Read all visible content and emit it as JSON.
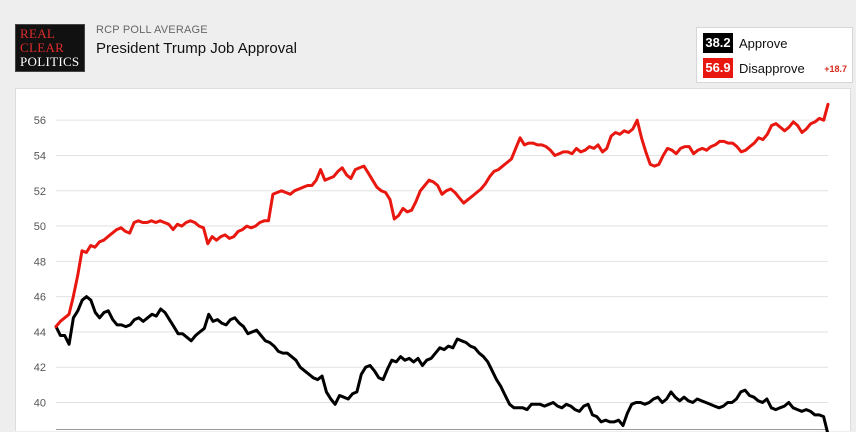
{
  "header": {
    "logo_lines": [
      "Real",
      "Clear",
      "Politics"
    ],
    "subtitle": "RCP POLL AVERAGE",
    "title": "President Trump Job Approval"
  },
  "legend": {
    "approve": {
      "value": "38.2",
      "label": "Approve",
      "color": "#000000"
    },
    "disapprove": {
      "value": "56.9",
      "label": "Disapprove",
      "color": "#e8170f"
    },
    "spread": "+18.7"
  },
  "chart_data": {
    "type": "line",
    "title": "",
    "xlabel": "",
    "ylabel": "",
    "ylim": [
      38.5,
      57.2
    ],
    "yticks": [
      40,
      42,
      44,
      46,
      48,
      50,
      52,
      54,
      56
    ],
    "ytick_labels": [
      "40",
      "42",
      "44",
      "46",
      "48",
      "50",
      "52",
      "54",
      "56"
    ],
    "grid": true,
    "legend_placement": "top-right",
    "series": [
      {
        "name": "Approve",
        "color": "#000000",
        "values": [
          44.3,
          43.8,
          43.8,
          43.3,
          44.8,
          45.2,
          45.8,
          46.0,
          45.8,
          45.1,
          44.8,
          45.1,
          45.2,
          44.7,
          44.4,
          44.4,
          44.3,
          44.4,
          44.7,
          44.8,
          44.6,
          44.8,
          45.0,
          44.9,
          45.3,
          45.1,
          44.7,
          44.3,
          43.9,
          43.9,
          43.7,
          43.5,
          43.8,
          44.0,
          44.2,
          45.0,
          44.6,
          44.7,
          44.5,
          44.4,
          44.7,
          44.8,
          44.5,
          44.3,
          43.9,
          44.0,
          44.1,
          43.8,
          43.5,
          43.4,
          43.2,
          42.9,
          42.8,
          42.8,
          42.6,
          42.4,
          42.0,
          41.8,
          41.6,
          41.4,
          41.3,
          41.5,
          40.6,
          40.2,
          39.9,
          40.4,
          40.3,
          40.2,
          40.5,
          40.6,
          41.6,
          42.0,
          42.1,
          41.8,
          41.4,
          41.3,
          41.9,
          42.4,
          42.3,
          42.6,
          42.4,
          42.5,
          42.3,
          42.5,
          42.1,
          42.4,
          42.5,
          42.8,
          43.1,
          43.0,
          43.2,
          43.1,
          43.6,
          43.5,
          43.4,
          43.2,
          43.1,
          42.8,
          42.6,
          42.3,
          41.8,
          41.3,
          40.9,
          40.4,
          39.9,
          39.7,
          39.7,
          39.7,
          39.6,
          39.9,
          39.9,
          39.9,
          39.8,
          39.9,
          40.0,
          39.8,
          39.7,
          39.9,
          39.8,
          39.6,
          39.5,
          39.8,
          39.9,
          39.3,
          39.2,
          38.9,
          39.0,
          38.9,
          38.9,
          39.0,
          38.7,
          39.4,
          39.9,
          40.0,
          40.0,
          39.9,
          40.0,
          40.2,
          40.3,
          40.0,
          40.2,
          40.6,
          40.3,
          40.1,
          40.3,
          40.1,
          40.0,
          40.2,
          40.1,
          40.0,
          39.9,
          39.8,
          39.7,
          39.8,
          40.0,
          40.0,
          40.2,
          40.6,
          40.7,
          40.4,
          40.3,
          40.1,
          40.0,
          40.2,
          39.7,
          39.6,
          39.7,
          39.8,
          40.0,
          39.7,
          39.6,
          39.5,
          39.6,
          39.5,
          39.3,
          39.3,
          39.2,
          38.2
        ]
      },
      {
        "name": "Disapprove",
        "color": "#e8170f",
        "values": [
          44.3,
          44.6,
          44.8,
          45.0,
          46.0,
          47.2,
          48.6,
          48.5,
          48.9,
          48.8,
          49.1,
          49.2,
          49.4,
          49.6,
          49.8,
          49.9,
          49.7,
          49.6,
          50.2,
          50.3,
          50.2,
          50.2,
          50.3,
          50.2,
          50.3,
          50.2,
          50.1,
          49.8,
          50.1,
          50.0,
          50.2,
          50.3,
          50.2,
          50.0,
          49.9,
          49.0,
          49.4,
          49.2,
          49.4,
          49.5,
          49.3,
          49.4,
          49.7,
          49.8,
          50.0,
          49.9,
          50.0,
          50.2,
          50.3,
          50.3,
          51.8,
          51.9,
          52.0,
          51.9,
          51.8,
          52.0,
          52.1,
          52.2,
          52.3,
          52.3,
          52.6,
          53.2,
          52.6,
          52.7,
          52.8,
          53.1,
          53.3,
          52.9,
          52.7,
          53.2,
          53.3,
          53.4,
          53.0,
          52.6,
          52.2,
          52.0,
          51.9,
          51.5,
          50.4,
          50.6,
          51.0,
          50.8,
          50.9,
          51.4,
          52.0,
          52.3,
          52.6,
          52.5,
          52.3,
          51.8,
          52.0,
          52.1,
          51.9,
          51.6,
          51.3,
          51.5,
          51.7,
          51.9,
          52.1,
          52.4,
          52.8,
          53.1,
          53.2,
          53.4,
          53.6,
          53.8,
          54.4,
          55.0,
          54.6,
          54.7,
          54.7,
          54.6,
          54.6,
          54.5,
          54.3,
          54.0,
          54.1,
          54.2,
          54.2,
          54.1,
          54.4,
          54.2,
          54.3,
          54.5,
          54.4,
          54.6,
          54.2,
          54.4,
          55.1,
          55.3,
          55.2,
          55.4,
          55.3,
          55.5,
          56.0,
          55.0,
          54.2,
          53.5,
          53.4,
          53.5,
          54.0,
          54.4,
          54.3,
          54.1,
          54.4,
          54.5,
          54.5,
          54.1,
          54.3,
          54.4,
          54.3,
          54.5,
          54.6,
          54.8,
          54.8,
          54.7,
          54.7,
          54.5,
          54.2,
          54.3,
          54.5,
          54.7,
          55.0,
          54.9,
          55.2,
          55.7,
          55.8,
          55.6,
          55.4,
          55.6,
          55.9,
          55.7,
          55.3,
          55.5,
          55.8,
          55.9,
          56.1,
          56.0,
          56.9
        ]
      }
    ]
  }
}
